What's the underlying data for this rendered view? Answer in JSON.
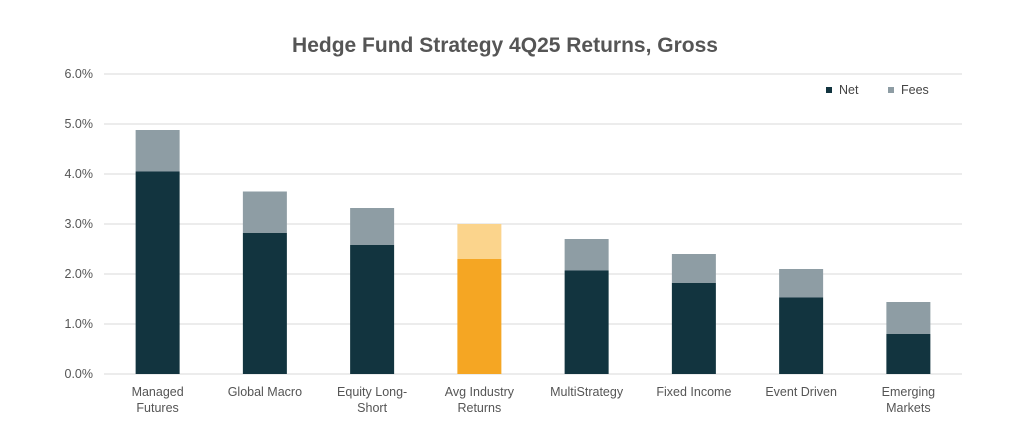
{
  "chart_data": {
    "type": "bar",
    "stacked": true,
    "title": "Hedge Fund Strategy 4Q25 Returns, Gross",
    "categories": [
      [
        "Managed",
        "Futures"
      ],
      [
        "Global Macro"
      ],
      [
        "Equity Long-",
        "Short"
      ],
      [
        "Avg Industry",
        "Returns"
      ],
      [
        "MultiStrategy"
      ],
      [
        "Fixed Income"
      ],
      [
        "Event Driven"
      ],
      [
        "Emerging",
        "Markets"
      ]
    ],
    "series": [
      {
        "name": "Net",
        "values": [
          4.05,
          2.82,
          2.58,
          2.3,
          2.07,
          1.82,
          1.53,
          0.8
        ]
      },
      {
        "name": "Fees",
        "values": [
          0.83,
          0.83,
          0.74,
          0.7,
          0.63,
          0.58,
          0.57,
          0.64
        ]
      }
    ],
    "ylim": [
      0,
      6
    ],
    "yticks": [
      "0.0%",
      "1.0%",
      "2.0%",
      "3.0%",
      "4.0%",
      "5.0%",
      "6.0%"
    ],
    "ytick_values": [
      0,
      1,
      2,
      3,
      4,
      5,
      6
    ],
    "grid": true,
    "legend_position": "top-right",
    "highlight_index": 3,
    "colors": {
      "net": "#12343f",
      "fees": "#8e9da4",
      "highlight_net": "#f5a623",
      "highlight_fees": "#fbd48c",
      "title": "#555555",
      "grid": "#d9d9d9"
    }
  }
}
